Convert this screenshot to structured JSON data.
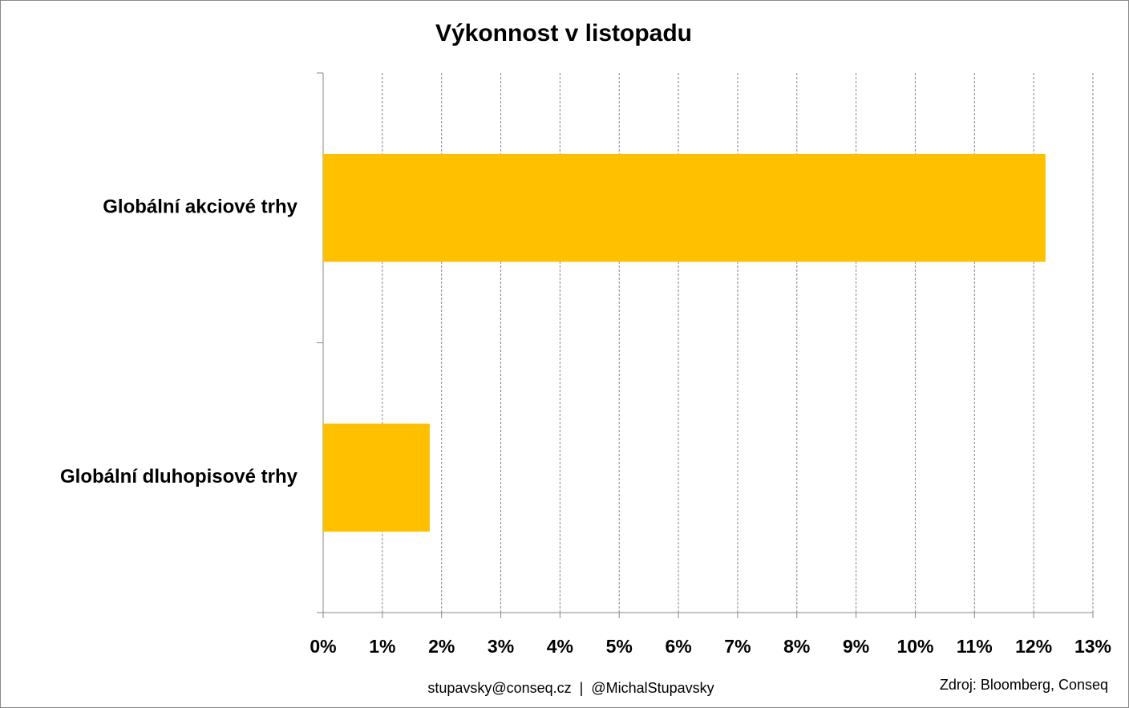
{
  "chart_data": {
    "type": "bar",
    "orientation": "horizontal",
    "title": "Výkonnost v listopadu",
    "categories": [
      "Globální akciové trhy",
      "Globální dluhopisové trhy"
    ],
    "values": [
      12.2,
      1.8
    ],
    "color": "#ffc000",
    "xlim": [
      0,
      13
    ],
    "xticks": [
      {
        "value": 0,
        "label": "0%"
      },
      {
        "value": 1,
        "label": "1%"
      },
      {
        "value": 2,
        "label": "2%"
      },
      {
        "value": 3,
        "label": "3%"
      },
      {
        "value": 4,
        "label": "4%"
      },
      {
        "value": 5,
        "label": "5%"
      },
      {
        "value": 6,
        "label": "6%"
      },
      {
        "value": 7,
        "label": "7%"
      },
      {
        "value": 8,
        "label": "8%"
      },
      {
        "value": 9,
        "label": "9%"
      },
      {
        "value": 10,
        "label": "10%"
      },
      {
        "value": 11,
        "label": "11%"
      },
      {
        "value": 12,
        "label": "12%"
      },
      {
        "value": 13,
        "label": "13%"
      }
    ],
    "grid": true,
    "footer": "stupavsky@conseq.cz  |  @MichalStupavsky",
    "source": "Zdroj: Bloomberg, Conseq"
  }
}
